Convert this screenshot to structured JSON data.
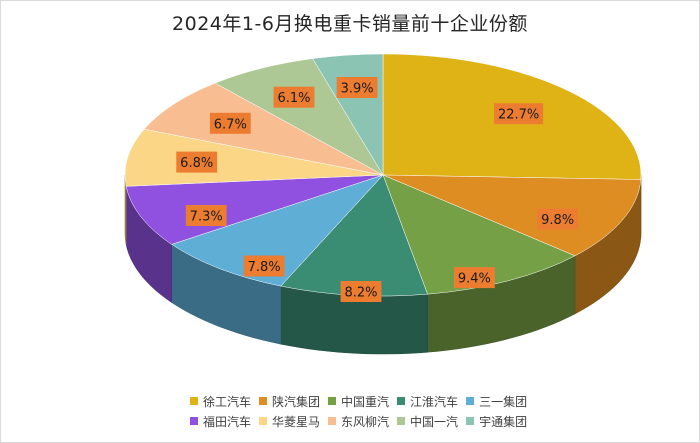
{
  "chart_data": {
    "type": "pie",
    "title": "2024年1-6月换电重卡销量前十企业份额",
    "categories": [
      "徐工汽车",
      "陕汽集团",
      "中国重汽",
      "江淮汽车",
      "三一集团",
      "福田汽车",
      "华菱星马",
      "东风柳汽",
      "中国一汽",
      "宇通集团"
    ],
    "values": [
      22.7,
      9.8,
      9.4,
      8.2,
      7.8,
      7.3,
      6.8,
      6.7,
      6.1,
      3.9
    ],
    "labels": [
      "22.7%",
      "9.8%",
      "9.4%",
      "8.2%",
      "7.8%",
      "7.3%",
      "6.8%",
      "6.7%",
      "6.1%",
      "3.9%"
    ],
    "colors": [
      "#dfb215",
      "#de8d22",
      "#76a045",
      "#3a8c72",
      "#5eaed6",
      "#9050e0",
      "#fbd686",
      "#f8bd90",
      "#aec895",
      "#8cc4b4"
    ],
    "label_box_color": "#ec7d30",
    "legend_position": "bottom"
  }
}
